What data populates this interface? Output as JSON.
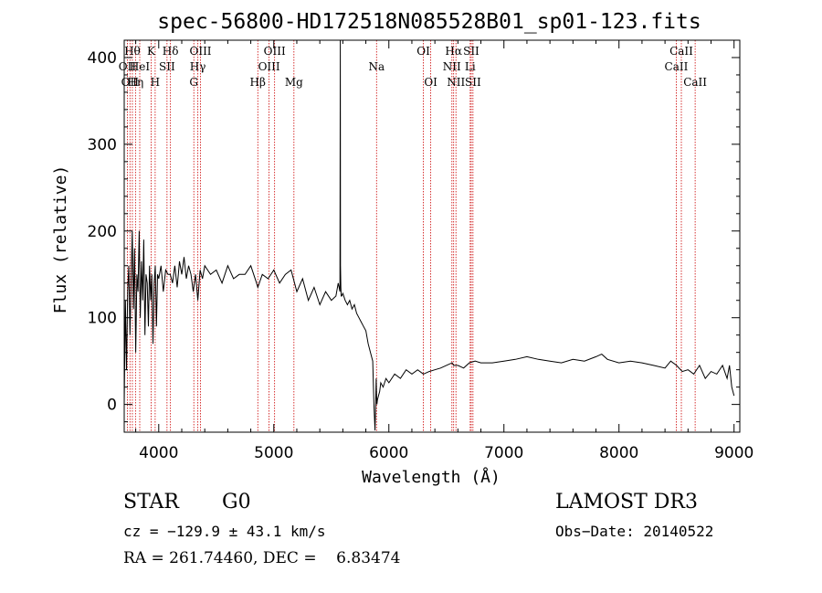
{
  "chart_data": {
    "type": "line",
    "title": "spec-56800-HD172518N085528B01_sp01-123.fits",
    "xlabel": "Wavelength (Å)",
    "ylabel": "Flux (relative)",
    "xlim": [
      3700,
      9050
    ],
    "ylim": [
      -32,
      420
    ],
    "xticks": [
      4000,
      5000,
      6000,
      7000,
      8000,
      9000
    ],
    "yticks": [
      0,
      100,
      200,
      300,
      400
    ],
    "grid": false,
    "series": [
      {
        "values_x": [
          3700,
          3710,
          3720,
          3730,
          3740,
          3750,
          3760,
          3770,
          3780,
          3790,
          3800,
          3810,
          3820,
          3830,
          3840,
          3850,
          3860,
          3870,
          3880,
          3890,
          3900,
          3910,
          3920,
          3930,
          3940,
          3950,
          3960,
          3970,
          3980,
          3990,
          4000,
          4020,
          4040,
          4060,
          4080,
          4100,
          4120,
          4140,
          4160,
          4180,
          4200,
          4220,
          4240,
          4260,
          4280,
          4300,
          4320,
          4340,
          4360,
          4380,
          4400,
          4450,
          4500,
          4550,
          4600,
          4650,
          4700,
          4750,
          4800,
          4850,
          4861,
          4900,
          4950,
          5000,
          5050,
          5100,
          5150,
          5200,
          5250,
          5300,
          5350,
          5400,
          5450,
          5500,
          5540,
          5560,
          5575,
          5578,
          5580,
          5583,
          5586,
          5590,
          5600,
          5620,
          5640,
          5660,
          5680,
          5700,
          5720,
          5740,
          5760,
          5780,
          5800,
          5820,
          5840,
          5860,
          5870,
          5880,
          5885,
          5890,
          5893,
          5896,
          5900,
          5910,
          5920,
          5930,
          5950,
          5975,
          6000,
          6050,
          6100,
          6150,
          6200,
          6250,
          6300,
          6350,
          6400,
          6450,
          6500,
          6550,
          6563,
          6600,
          6650,
          6700,
          6750,
          6800,
          6900,
          7000,
          7100,
          7200,
          7300,
          7400,
          7500,
          7600,
          7700,
          7800,
          7850,
          7900,
          8000,
          8100,
          8200,
          8300,
          8400,
          8450,
          8500,
          8550,
          8600,
          8650,
          8700,
          8750,
          8800,
          8850,
          8900,
          8940,
          8960,
          8980,
          9000
        ],
        "values_y": [
          0,
          120,
          40,
          130,
          160,
          80,
          145,
          200,
          110,
          180,
          60,
          150,
          130,
          200,
          100,
          165,
          120,
          190,
          80,
          150,
          140,
          90,
          160,
          120,
          150,
          70,
          140,
          160,
          90,
          150,
          145,
          160,
          130,
          155,
          150,
          150,
          140,
          160,
          135,
          165,
          150,
          170,
          145,
          160,
          150,
          130,
          150,
          120,
          155,
          145,
          160,
          150,
          155,
          140,
          160,
          145,
          150,
          150,
          160,
          140,
          135,
          150,
          145,
          155,
          140,
          150,
          155,
          130,
          145,
          120,
          135,
          115,
          130,
          120,
          125,
          140,
          130,
          420,
          160,
          135,
          125,
          125,
          128,
          120,
          115,
          120,
          110,
          115,
          105,
          100,
          95,
          90,
          85,
          70,
          60,
          50,
          0,
          -30,
          0,
          30,
          10,
          0,
          5,
          10,
          15,
          25,
          20,
          30,
          25,
          35,
          30,
          40,
          35,
          40,
          35,
          38,
          40,
          42,
          45,
          48,
          45,
          45,
          42,
          48,
          50,
          48,
          48,
          50,
          52,
          55,
          52,
          50,
          48,
          52,
          50,
          55,
          58,
          52,
          48,
          50,
          48,
          45,
          42,
          50,
          45,
          38,
          40,
          35,
          45,
          30,
          38,
          35,
          45,
          30,
          45,
          20,
          10
        ]
      }
    ],
    "line_markers": [
      {
        "wl": 3727,
        "labels": [
          "OII"
        ],
        "row": 1
      },
      {
        "wl": 3750,
        "labels": [
          "OII"
        ],
        "row": 2
      },
      {
        "wl": 3771,
        "labels": [
          "Hθ"
        ],
        "row": 0
      },
      {
        "wl": 3798,
        "labels": [
          "Hη"
        ],
        "row": 2
      },
      {
        "wl": 3835,
        "labels": [
          "HeI"
        ],
        "row": 1
      },
      {
        "wl": 3934,
        "labels": [
          "K"
        ],
        "row": 0
      },
      {
        "wl": 3969,
        "labels": [
          "H"
        ],
        "row": 2
      },
      {
        "wl": 4072,
        "labels": [
          "SII"
        ],
        "row": 1
      },
      {
        "wl": 4102,
        "labels": [
          "Hδ"
        ],
        "row": 0
      },
      {
        "wl": 4305,
        "labels": [
          "G"
        ],
        "row": 2
      },
      {
        "wl": 4340,
        "labels": [
          "Hγ"
        ],
        "row": 1
      },
      {
        "wl": 4363,
        "labels": [
          "OIII"
        ],
        "row": 0
      },
      {
        "wl": 4861,
        "labels": [
          "Hβ"
        ],
        "row": 2
      },
      {
        "wl": 4959,
        "labels": [
          "OIII"
        ],
        "row": 1
      },
      {
        "wl": 5007,
        "labels": [
          "OIII"
        ],
        "row": 0
      },
      {
        "wl": 5175,
        "labels": [
          "Mg"
        ],
        "row": 2
      },
      {
        "wl": 5893,
        "labels": [
          "Na"
        ],
        "row": 1
      },
      {
        "wl": 6300,
        "labels": [
          "OI"
        ],
        "row": 0
      },
      {
        "wl": 6364,
        "labels": [
          "OI"
        ],
        "row": 2
      },
      {
        "wl": 6548,
        "labels": [
          "NII"
        ],
        "row": 1
      },
      {
        "wl": 6563,
        "labels": [
          "Hα"
        ],
        "row": 0
      },
      {
        "wl": 6583,
        "labels": [
          "NII"
        ],
        "row": 2
      },
      {
        "wl": 6707,
        "labels": [
          "Li"
        ],
        "row": 1
      },
      {
        "wl": 6716,
        "labels": [
          "SII"
        ],
        "row": 0
      },
      {
        "wl": 6731,
        "labels": [
          "SII"
        ],
        "row": 2
      },
      {
        "wl": 8498,
        "labels": [
          "CaII"
        ],
        "row": 1
      },
      {
        "wl": 8542,
        "labels": [
          "CaII"
        ],
        "row": 0
      },
      {
        "wl": 8662,
        "labels": [
          "CaII"
        ],
        "row": 2
      }
    ],
    "colors": {
      "line": "#000000",
      "markers": "#cc0000",
      "axis": "#000000"
    }
  },
  "info": {
    "class": "STAR",
    "subclass": "G0",
    "survey": "LAMOST DR3",
    "cz": "cz = −129.9 ± 43.1 km/s",
    "obs_date": "Obs−Date: 20140522",
    "radec": "RA = 261.74460, DEC =    6.83474"
  }
}
